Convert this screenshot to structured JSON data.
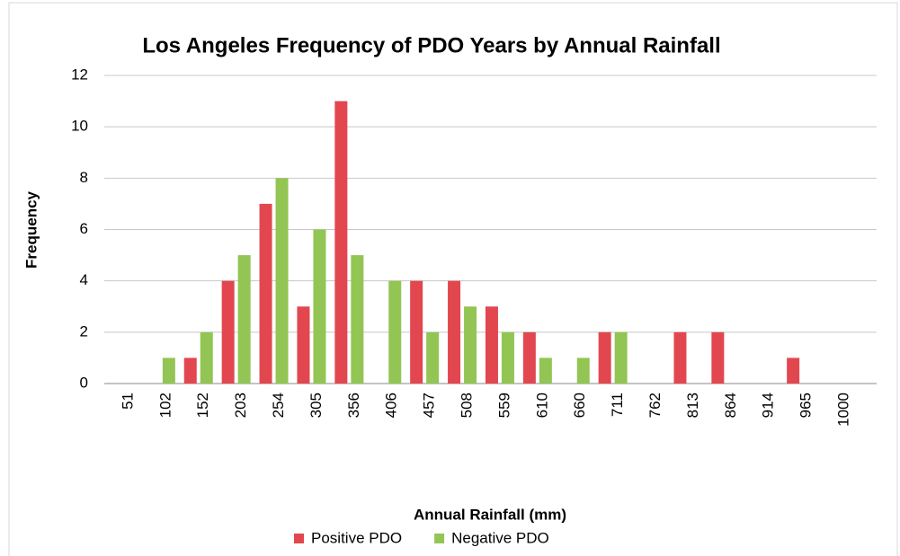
{
  "chart_data": {
    "type": "bar",
    "title": "Los Angeles Frequency of PDO Years by Annual Rainfall",
    "x_label": "Annual Rainfall (mm)",
    "y_label": "Frequency",
    "categories": [
      "51",
      "102",
      "152",
      "203",
      "254",
      "305",
      "356",
      "406",
      "457",
      "508",
      "559",
      "610",
      "660",
      "711",
      "762",
      "813",
      "864",
      "914",
      "965",
      "1000"
    ],
    "series": [
      {
        "name": "Positive PDO",
        "color": "#e2474f",
        "values": [
          0,
          0,
          1,
          4,
          7,
          3,
          11,
          0,
          4,
          4,
          3,
          2,
          0,
          2,
          0,
          2,
          2,
          0,
          1,
          0
        ]
      },
      {
        "name": "Negative PDO",
        "color": "#92c553",
        "values": [
          0,
          1,
          2,
          5,
          8,
          6,
          5,
          4,
          2,
          3,
          2,
          1,
          1,
          2,
          0,
          0,
          0,
          0,
          0,
          0
        ]
      }
    ],
    "ylim": [
      0,
      12
    ],
    "yticks": [
      0,
      2,
      4,
      6,
      8,
      10,
      12
    ],
    "grid": true,
    "legend": "bottom"
  }
}
